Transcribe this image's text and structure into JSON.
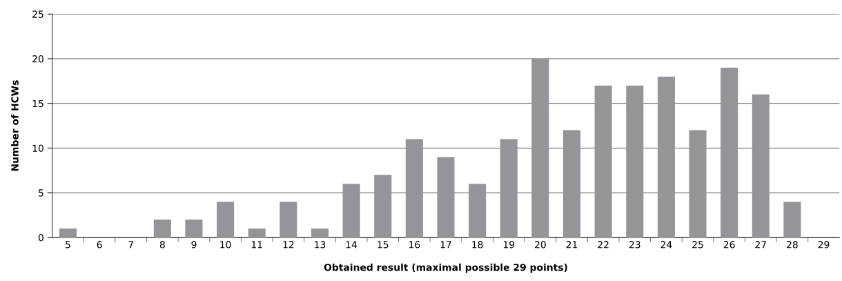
{
  "chart_data": {
    "type": "bar",
    "xlabel": "Obtained result (maximal possible 29 points)",
    "ylabel": "Number of HCWs",
    "categories": [
      "5",
      "6",
      "7",
      "8",
      "9",
      "10",
      "11",
      "12",
      "13",
      "14",
      "15",
      "16",
      "17",
      "18",
      "19",
      "20",
      "21",
      "22",
      "23",
      "24",
      "25",
      "26",
      "27",
      "28",
      "29"
    ],
    "values": [
      1,
      0,
      0,
      2,
      2,
      4,
      1,
      4,
      1,
      6,
      7,
      11,
      9,
      6,
      11,
      20,
      12,
      17,
      17,
      18,
      12,
      19,
      16,
      4,
      0
    ],
    "color": "#939598",
    "ylim": [
      0,
      25
    ],
    "yticks": [
      0,
      5,
      10,
      15,
      20,
      25
    ],
    "grid": "y",
    "legend": false
  }
}
